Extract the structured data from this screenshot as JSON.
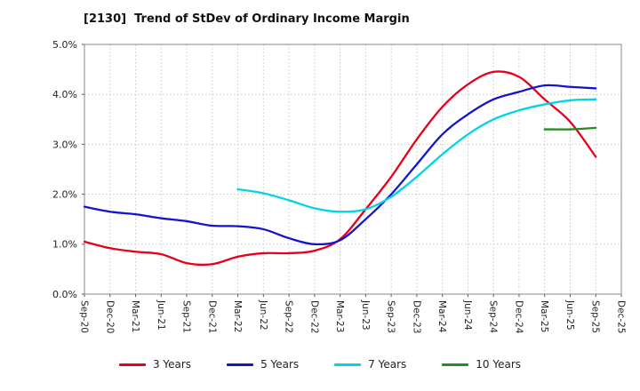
{
  "chart_data": {
    "type": "line",
    "title": "[2130]  Trend of StDev of Ordinary Income Margin",
    "categories": [
      "Sep-20",
      "Dec-20",
      "Mar-21",
      "Jun-21",
      "Sep-21",
      "Dec-21",
      "Mar-22",
      "Jun-22",
      "Sep-22",
      "Dec-22",
      "Mar-23",
      "Jun-23",
      "Sep-23",
      "Dec-23",
      "Mar-24",
      "Jun-24",
      "Sep-24",
      "Dec-24",
      "Mar-25",
      "Jun-25",
      "Sep-25",
      "Dec-25"
    ],
    "ylim": [
      0.0,
      5.0
    ],
    "yticks": [
      0,
      1,
      2,
      3,
      4,
      5
    ],
    "ytick_labels": [
      "0.0%",
      "1.0%",
      "2.0%",
      "3.0%",
      "4.0%",
      "5.0%"
    ],
    "grid": true,
    "legend_position": "bottom",
    "unit": "%",
    "series": [
      {
        "name": "3 Years",
        "color": "#e60019",
        "values": [
          1.05,
          0.92,
          0.85,
          0.8,
          0.62,
          0.6,
          0.75,
          0.82,
          0.82,
          0.87,
          1.1,
          1.7,
          2.35,
          3.1,
          3.75,
          4.2,
          4.45,
          4.35,
          3.9,
          3.45,
          2.75,
          null
        ]
      },
      {
        "name": "5 Years",
        "color": "#1414cc",
        "values": [
          1.75,
          1.65,
          1.6,
          1.52,
          1.46,
          1.37,
          1.36,
          1.3,
          1.12,
          1.0,
          1.08,
          1.5,
          2.0,
          2.6,
          3.2,
          3.6,
          3.9,
          4.05,
          4.18,
          4.15,
          4.12,
          null
        ]
      },
      {
        "name": "7 Years",
        "color": "#00d4e6",
        "values": [
          null,
          null,
          null,
          null,
          null,
          null,
          2.1,
          2.02,
          1.88,
          1.72,
          1.65,
          1.7,
          1.95,
          2.35,
          2.8,
          3.2,
          3.5,
          3.68,
          3.8,
          3.88,
          3.9,
          null
        ]
      },
      {
        "name": "10 Years",
        "color": "#228b22",
        "values": [
          null,
          null,
          null,
          null,
          null,
          null,
          null,
          null,
          null,
          null,
          null,
          null,
          null,
          null,
          null,
          null,
          null,
          null,
          3.3,
          3.3,
          3.33,
          null
        ]
      }
    ]
  }
}
